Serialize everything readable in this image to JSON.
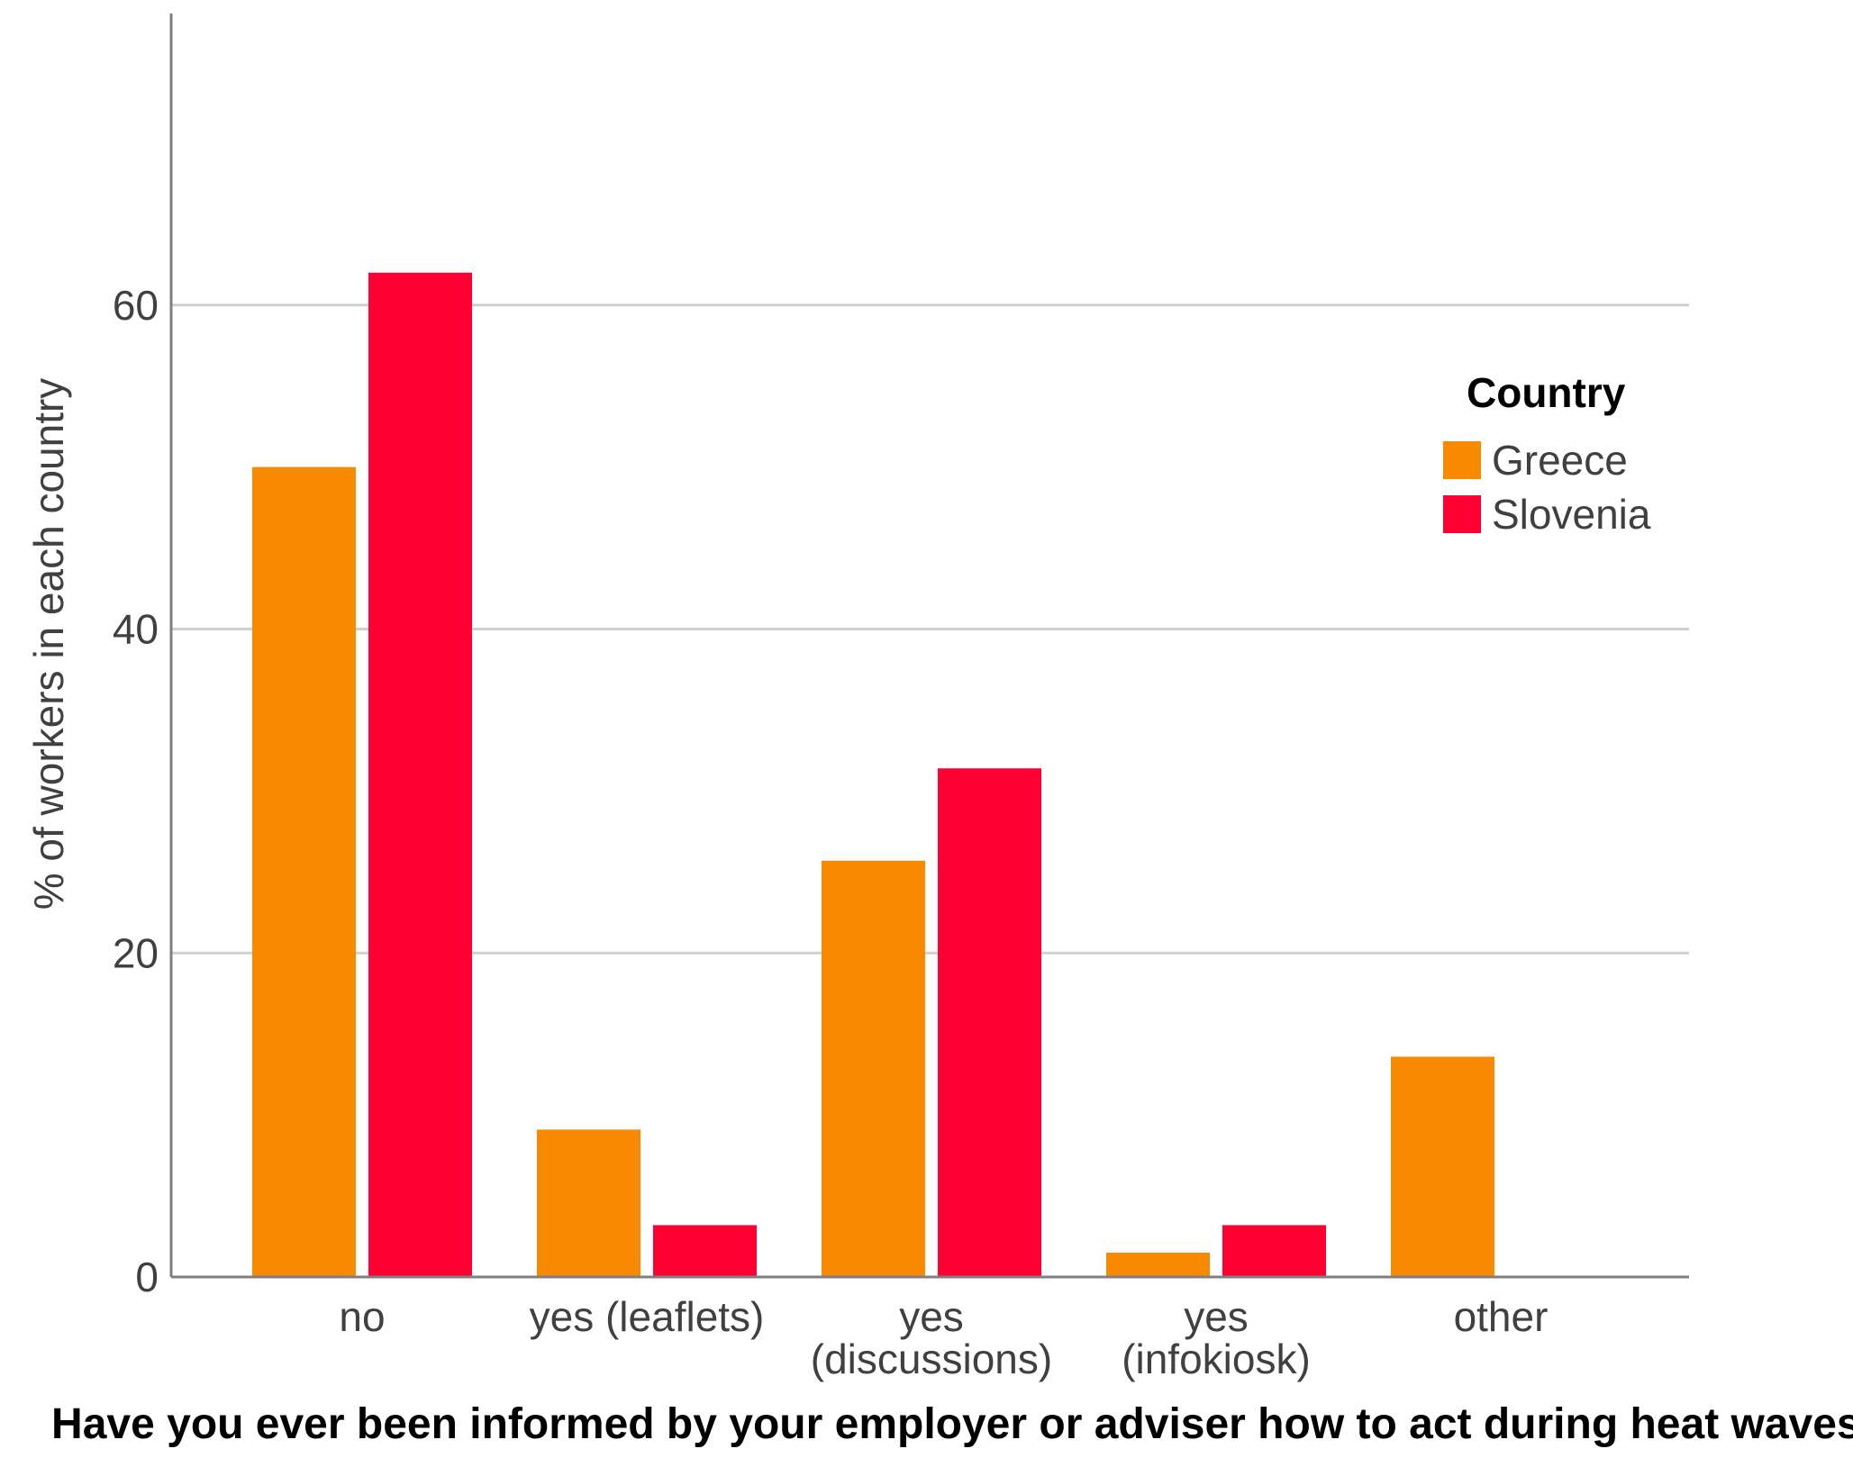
{
  "chart_data": {
    "type": "bar",
    "title": "",
    "xlabel": "Have you ever been informed by your employer or adviser how to act during heat waves?",
    "ylabel": "% of workers in each country",
    "categories": [
      [
        "no"
      ],
      [
        "yes (leaflets)"
      ],
      [
        "yes",
        "(discussions)"
      ],
      [
        "yes",
        "(infokiosk)"
      ],
      [
        "other"
      ]
    ],
    "series": [
      {
        "name": "Greece",
        "color": "#F78A00",
        "values": [
          50.0,
          9.1,
          25.7,
          1.5,
          13.6
        ]
      },
      {
        "name": "Slovenia",
        "color": "#FF0033",
        "values": [
          62.0,
          3.2,
          31.4,
          3.2,
          0
        ]
      }
    ],
    "ylim": [
      0,
      78
    ],
    "yticks": [
      0,
      20,
      40,
      60
    ],
    "grid": true,
    "legend": {
      "title": "Country",
      "position": "top-right"
    }
  }
}
